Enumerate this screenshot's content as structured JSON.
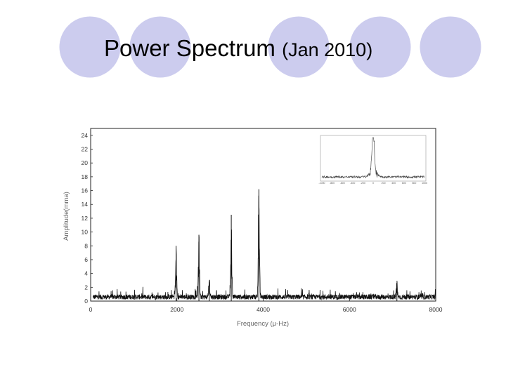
{
  "slide": {
    "title": "Power Spectrum",
    "title_suffix": "(Jan 2010)",
    "circle_fill": "#ccccee",
    "circle_stroke": "#ffffff"
  },
  "chart_data": {
    "type": "line",
    "title": "",
    "xlabel": "Frequency (μ-Hz)",
    "ylabel": "Amplitude(mma)",
    "xlim": [
      0,
      8000
    ],
    "ylim": [
      0,
      25
    ],
    "xticks": [
      "0",
      "2000",
      "4000",
      "6000",
      "8000"
    ],
    "yticks": [
      "0",
      "2",
      "4",
      "6",
      "8",
      "10",
      "12",
      "14",
      "16",
      "18",
      "20",
      "22",
      "24"
    ],
    "grid": false,
    "line_color": "#111111",
    "series": [
      {
        "name": "",
        "peaks": [
          {
            "x": 1980,
            "y": 8.0
          },
          {
            "x": 2510,
            "y": 9.6
          },
          {
            "x": 2750,
            "y": 3.0
          },
          {
            "x": 3260,
            "y": 12.5
          },
          {
            "x": 3900,
            "y": 16.2
          },
          {
            "x": 7100,
            "y": 2.6
          }
        ],
        "noise_level": 0.6
      }
    ],
    "inset": {
      "type": "line",
      "legend_position": "top-right",
      "xtick_labels": [
        "-1000",
        "-800",
        "-600",
        "-400",
        "-200",
        "0",
        "200",
        "400",
        "600",
        "800",
        "1000"
      ],
      "xlim": [
        -1000,
        1000
      ],
      "peak": {
        "x": 0,
        "y": 1.0
      }
    }
  }
}
